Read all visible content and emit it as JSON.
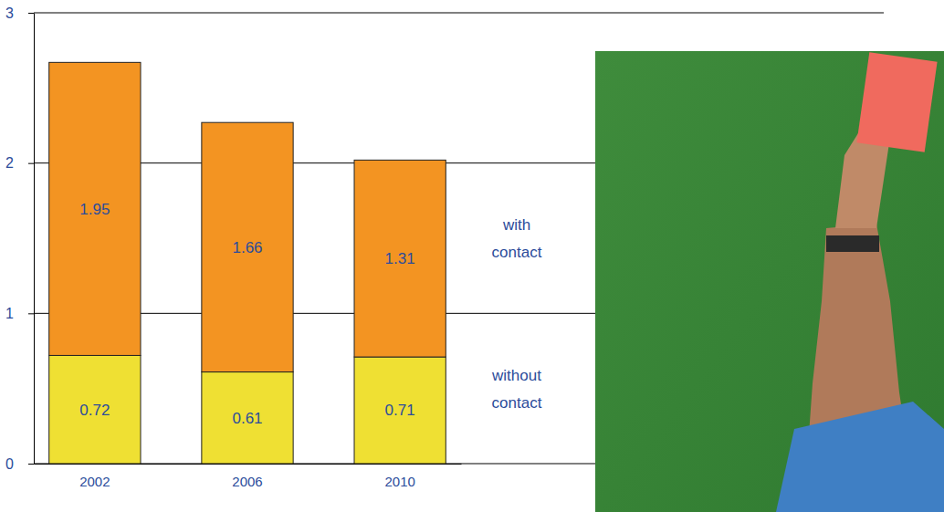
{
  "chart_data": {
    "type": "bar",
    "stacked": true,
    "data_labels": true,
    "grid": true,
    "legend": "right",
    "categories": [
      "2002",
      "2006",
      "2010"
    ],
    "series": [
      {
        "name": "without contact",
        "color": "#efe033",
        "values": [
          0.72,
          0.61,
          0.71
        ]
      },
      {
        "name": "with contact",
        "color": "#f39422",
        "values": [
          1.95,
          1.66,
          1.31
        ]
      }
    ],
    "ylim": [
      0,
      3
    ],
    "yticks": [
      0,
      1,
      2,
      3
    ]
  }
}
